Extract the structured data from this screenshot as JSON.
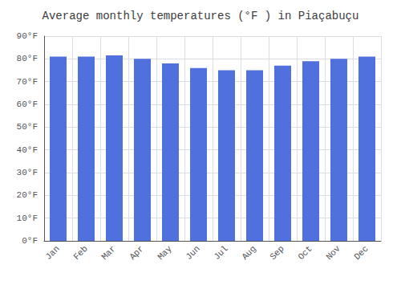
{
  "chart_data": {
    "type": "bar",
    "title": "Average monthly temperatures (°F ) in Piaçabuçu",
    "categories": [
      "Jan",
      "Feb",
      "Mar",
      "Apr",
      "May",
      "Jun",
      "Jul",
      "Aug",
      "Sep",
      "Oct",
      "Nov",
      "Dec"
    ],
    "values": [
      81,
      81,
      81.5,
      80,
      78,
      76,
      75,
      75,
      77,
      79,
      80,
      81
    ],
    "ylim": [
      0,
      90
    ],
    "yticks": [
      {
        "value": 0,
        "label": "0°F"
      },
      {
        "value": 10,
        "label": "10°F"
      },
      {
        "value": 20,
        "label": "20°F"
      },
      {
        "value": 30,
        "label": "30°F"
      },
      {
        "value": 40,
        "label": "40°F"
      },
      {
        "value": 50,
        "label": "50°F"
      },
      {
        "value": 60,
        "label": "60°F"
      },
      {
        "value": 70,
        "label": "70°F"
      },
      {
        "value": 80,
        "label": "80°F"
      },
      {
        "value": 90,
        "label": "90°F"
      }
    ],
    "grid": true
  }
}
